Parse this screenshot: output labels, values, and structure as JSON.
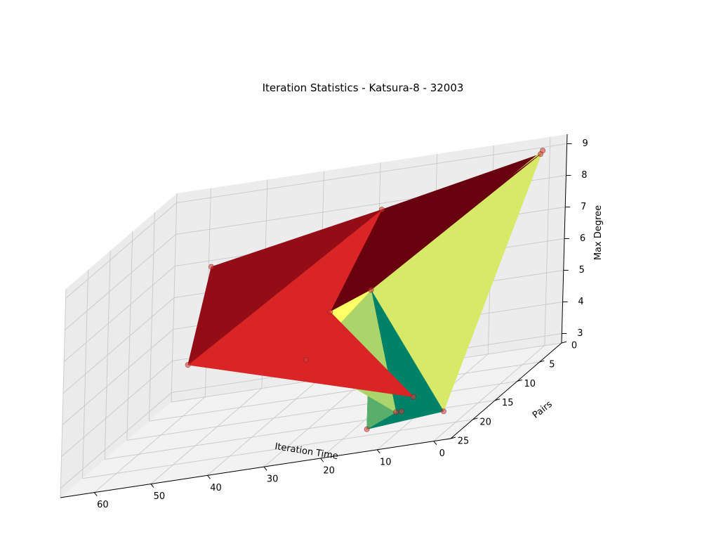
{
  "chart_data": {
    "type": "surface3d",
    "title": "Iteration Statistics - Katsura-8 - 32003",
    "xlabel": "Iteration Time",
    "ylabel": "Pairs",
    "zlabel": "Max Degree",
    "xlim": [
      -3,
      66
    ],
    "ylim": [
      0,
      25
    ],
    "zlim": [
      2.7,
      9.3
    ],
    "x_ticks": [
      0,
      10,
      20,
      30,
      40,
      50,
      60
    ],
    "y_ticks": [
      0,
      5,
      10,
      15,
      20,
      25
    ],
    "z_ticks": [
      3,
      4,
      5,
      6,
      7,
      8,
      9
    ],
    "grid": true,
    "points": [
      {
        "x": 0.1,
        "y": 2,
        "z": 9
      },
      {
        "x": 0.5,
        "y": 1,
        "z": 9
      },
      {
        "x": 28,
        "y": 2,
        "z": 8
      },
      {
        "x": 58,
        "y": 2,
        "z": 7
      },
      {
        "x": 54,
        "y": 12,
        "z": 5
      },
      {
        "x": 29,
        "y": 12,
        "z": 6
      },
      {
        "x": 30,
        "y": 16,
        "z": 5
      },
      {
        "x": 13,
        "y": 13,
        "z": 3
      },
      {
        "x": 12,
        "y": 17,
        "z": 3
      },
      {
        "x": 13,
        "y": 17,
        "z": 3
      },
      {
        "x": 15,
        "y": 21,
        "z": 3
      },
      {
        "x": 18,
        "y": 17,
        "z": 7
      },
      {
        "x": 3,
        "y": 19,
        "z": 3
      }
    ],
    "faces": [
      {
        "v": [
          3,
          2,
          4
        ],
        "color": "#940C16"
      },
      {
        "v": [
          2,
          0,
          5
        ],
        "color": "#69000E"
      },
      {
        "v": [
          2,
          5,
          4
        ],
        "color": "#D92525"
      },
      {
        "v": [
          4,
          5,
          7
        ],
        "color": "#D92525"
      },
      {
        "v": [
          5,
          8,
          7
        ],
        "color": "#C71E1E"
      },
      {
        "v": [
          5,
          9,
          8
        ],
        "color": "#8E0A14"
      },
      {
        "v": [
          5,
          0,
          11
        ],
        "color": "#69000E"
      },
      {
        "v": [
          11,
          0,
          1
        ],
        "color": "#D6EA68"
      },
      {
        "v": [
          11,
          1,
          12
        ],
        "color": "#D6EA68"
      },
      {
        "v": [
          6,
          5,
          11
        ],
        "color": "#FFFF66"
      },
      {
        "v": [
          6,
          11,
          9
        ],
        "color": "#ABD46A"
      },
      {
        "v": [
          9,
          11,
          10
        ],
        "color": "#58AE6A"
      },
      {
        "v": [
          10,
          11,
          12
        ],
        "color": "#008268"
      }
    ],
    "marker_color": "#D93A3A"
  }
}
